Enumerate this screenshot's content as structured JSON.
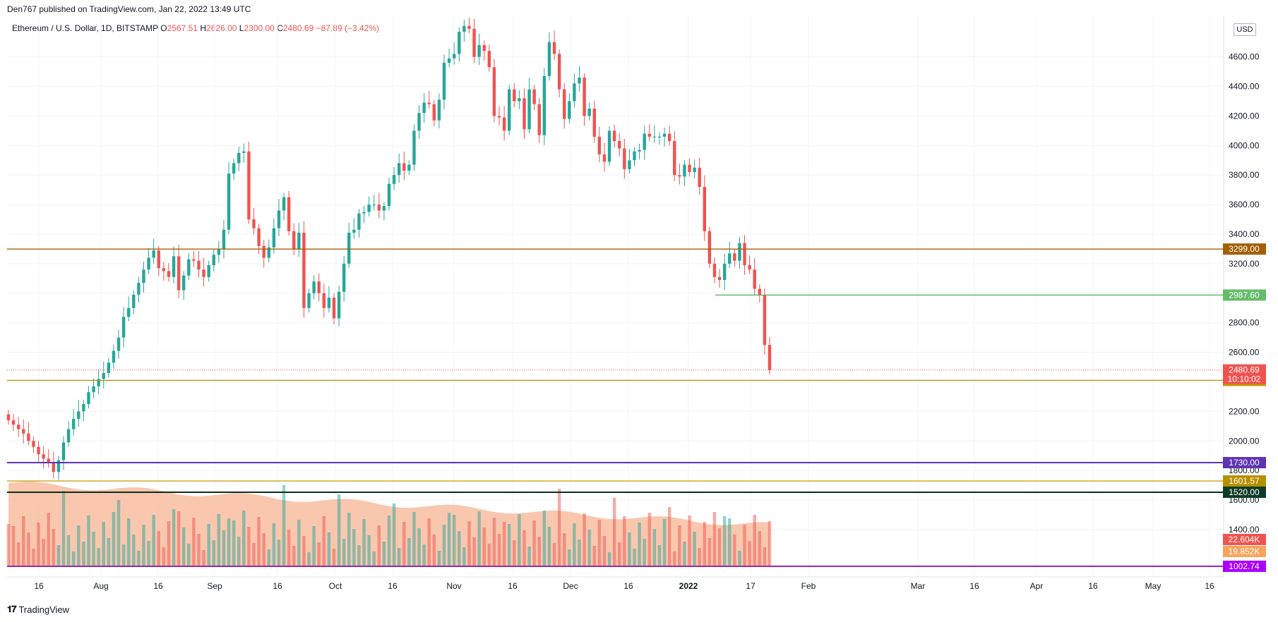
{
  "header": {
    "published_by": "Den767 published on TradingView.com, Jan 22, 2022 13:49 UTC",
    "symbol": "Ethereum / U.S. Dollar, 1D, BITSTAMP",
    "open_label": "O",
    "open": "2567.51",
    "high_label": "H",
    "high": "2626.00",
    "low_label": "L",
    "low": "2300.00",
    "close_label": "C",
    "close": "2480.69",
    "change": "−87.89 (−3.42%)"
  },
  "currency": "USD",
  "footer": {
    "brand": "TradingView"
  },
  "colors": {
    "up": "#26a69a",
    "down": "#ef5350",
    "volume_ma": "#f8b99a",
    "grid": "#f0f3fa"
  },
  "chart_data": {
    "type": "candlestick",
    "price_axis": {
      "ticks": [
        "4600.00",
        "4400.00",
        "4200.00",
        "4000.00",
        "3800.00",
        "3600.00",
        "3400.00",
        "3200.00",
        "3000.00",
        "2800.00",
        "2600.00",
        "2400.00",
        "2200.00",
        "2000.00",
        "1800.00",
        "1600.00",
        "1400.00"
      ],
      "range": [
        1080,
        4880
      ]
    },
    "time_axis": {
      "ticks": [
        "16",
        "Aug",
        "16",
        "Sep",
        "16",
        "Oct",
        "16",
        "Nov",
        "16",
        "Dec",
        "16",
        "2022",
        "17",
        "Feb",
        "Mar",
        "16",
        "Apr",
        "16",
        "May",
        "16"
      ],
      "bold_tick": "2022"
    },
    "levels": [
      {
        "label": "3299.00",
        "value": 3299,
        "color": "#a35f08",
        "badge_color": "#a35f08"
      },
      {
        "label": "2987.60",
        "value": 2987.6,
        "color": "#4caf50",
        "badge_color": "#66bb6a"
      },
      {
        "label": "2410.00",
        "value": 2410,
        "color": "#b79002",
        "badge_color": "#c49a00"
      },
      {
        "label": "1730.00",
        "value": 1730,
        "color": "#5e35b1",
        "badge_color": "#5e35b1"
      },
      {
        "label": "1601.57",
        "value": 1601.57,
        "color": "#c49a00",
        "badge_color": "#b79002"
      },
      {
        "label": "1520.00",
        "value": 1520,
        "color": "#0b2e1f",
        "badge_color": "#0d3b26"
      },
      {
        "label": "1002.74",
        "value": 1002.74,
        "color": "#9c27b0",
        "badge_color": "#aa00ff"
      }
    ],
    "last_price": {
      "label": "2480.69",
      "value": 2480.69,
      "countdown": "10:10:02"
    },
    "volume": {
      "current": "22.604K",
      "ma": "19.852K"
    },
    "series_closes": [
      2140,
      2110,
      2080,
      2050,
      2000,
      1960,
      1910,
      1880,
      1850,
      1790,
      1870,
      1990,
      2080,
      2150,
      2200,
      2250,
      2330,
      2370,
      2420,
      2460,
      2530,
      2610,
      2700,
      2840,
      2900,
      2990,
      3070,
      3160,
      3240,
      3290,
      3170,
      3150,
      3110,
      3250,
      3020,
      3120,
      3230,
      3220,
      3160,
      3110,
      3190,
      3260,
      3300,
      3430,
      3810,
      3880,
      3950,
      3960,
      3500,
      3440,
      3320,
      3240,
      3310,
      3440,
      3560,
      3650,
      3420,
      3300,
      3410,
      2900,
      3000,
      3080,
      3000,
      2900,
      2970,
      2830,
      3010,
      3200,
      3410,
      3430,
      3540,
      3550,
      3600,
      3600,
      3560,
      3590,
      3740,
      3800,
      3880,
      3830,
      3870,
      4100,
      4220,
      4290,
      4280,
      4170,
      4310,
      4560,
      4590,
      4620,
      4770,
      4810,
      4790,
      4600,
      4680,
      4640,
      4530,
      4200,
      4190,
      4100,
      4380,
      4300,
      4320,
      4110,
      4380,
      4280,
      4070,
      4470,
      4700,
      4620,
      4380,
      4180,
      4300,
      4420,
      4460,
      4200,
      4250,
      4060,
      3940,
      3890,
      4100,
      4030,
      3980,
      3840,
      3900,
      3960,
      3970,
      4080,
      4060,
      4060,
      4060,
      4080,
      4030,
      3800,
      3790,
      3870,
      3820,
      3850,
      3720,
      3420,
      3200,
      3110,
      3090,
      3200,
      3270,
      3220,
      3340,
      3190,
      3160,
      3030,
      2990,
      2650,
      2480
    ]
  }
}
